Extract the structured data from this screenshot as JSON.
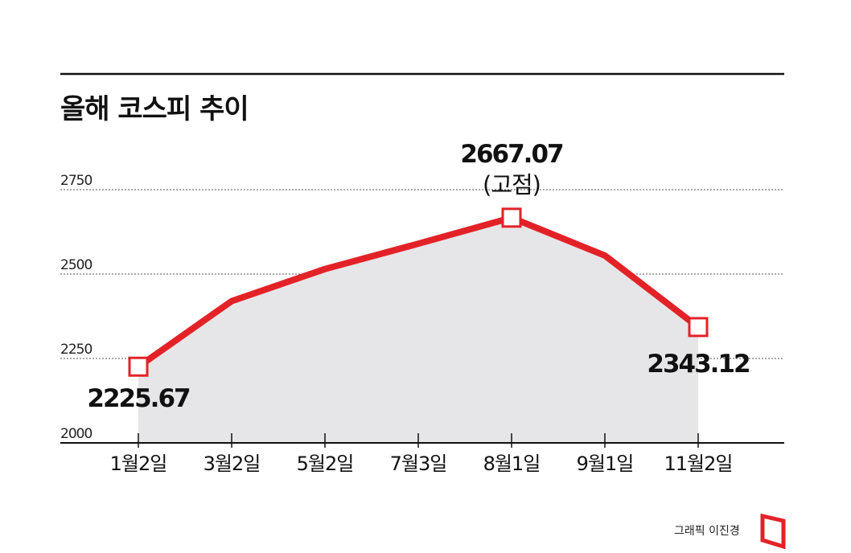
{
  "title": "올해 코스피 추이",
  "credit": "그래픽 이진경",
  "colors": {
    "line": "#e32228",
    "area": "#e6e6e8",
    "axis": "#111111",
    "grid": "#555555",
    "marker_fill": "#ffffff"
  },
  "chart_data": {
    "type": "area",
    "title": "올해 코스피 추이",
    "xlabel": "",
    "ylabel": "",
    "categories": [
      "1월2일",
      "3월2일",
      "5월2일",
      "7월3일",
      "8월1일",
      "9월1일",
      "11월2일"
    ],
    "values": [
      2225.67,
      2420,
      2515,
      2590,
      2667.07,
      2555,
      2343.12
    ],
    "ylim": [
      2000,
      2750
    ],
    "yticks": [
      "2000",
      "2250",
      "2500",
      "2750"
    ],
    "grid": true,
    "annotations": [
      {
        "index": 0,
        "label": "2225.67",
        "note": ""
      },
      {
        "index": 4,
        "label": "2667.07",
        "note": "(고점)"
      },
      {
        "index": 6,
        "label": "2343.12",
        "note": ""
      }
    ]
  }
}
